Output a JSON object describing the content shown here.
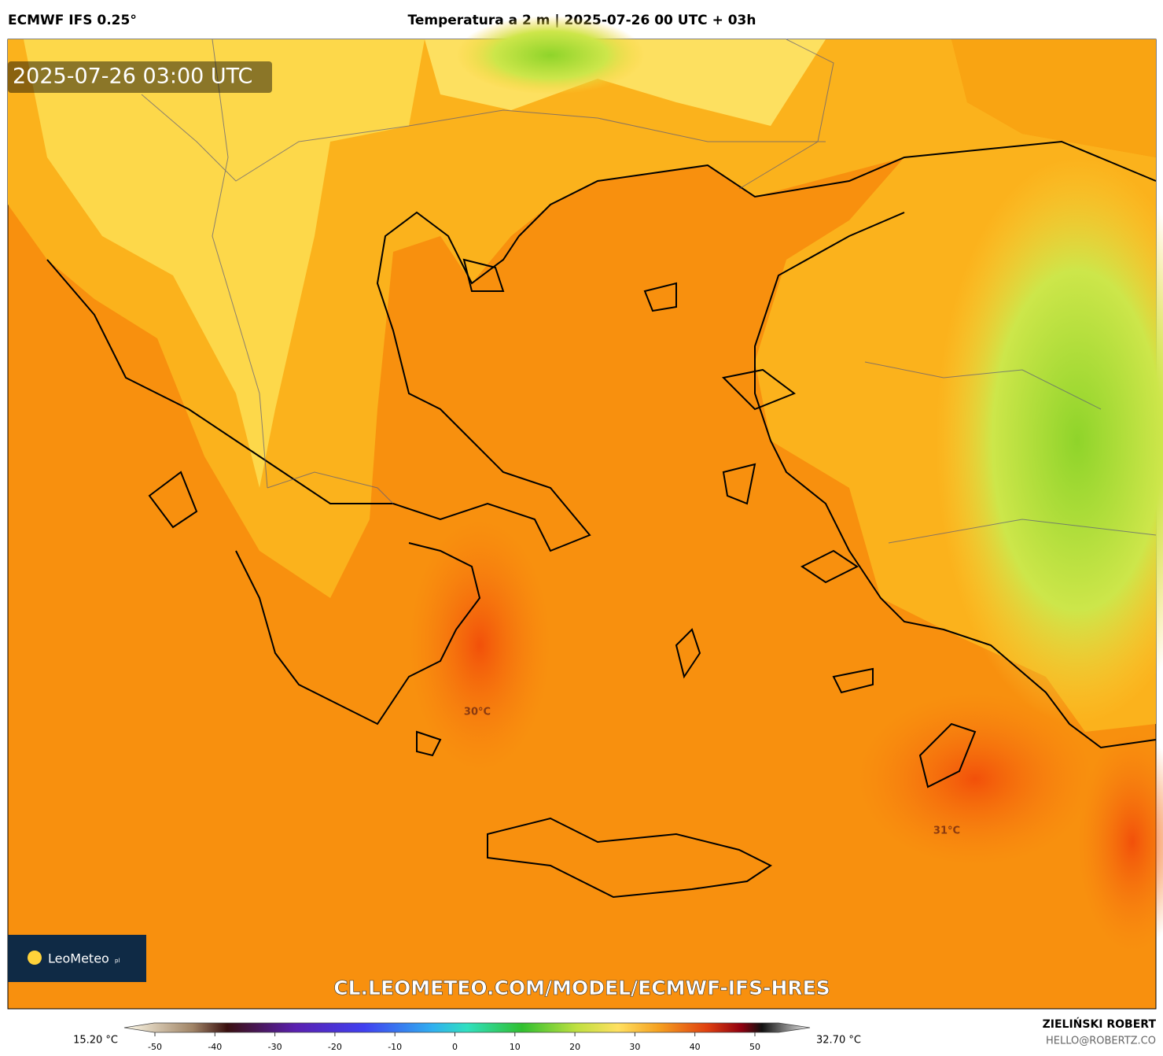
{
  "header": {
    "model": "ECMWF IFS 0.25°",
    "title": "Temperatura a 2 m | 2025-07-26 00 UTC + 03h"
  },
  "map": {
    "timestamp": "2025-07-26 03:00 UTC",
    "contour_labels": [
      "30°C",
      "31°C"
    ],
    "watermark": "CL.LEOMETEO.COM/MODEL/ECMWF-IFS-HRES",
    "logo": "LeoMeteo",
    "logo_suffix": "pl"
  },
  "colorbar": {
    "min_label": "15.20 °C",
    "max_label": "32.70 °C",
    "ticks": [
      -50,
      -40,
      -30,
      -20,
      -10,
      0,
      10,
      20,
      30,
      40,
      50
    ]
  },
  "footer": {
    "author": "ZIELIŃSKI ROBERT",
    "contact": "HELLO@ROBERTZ.CO"
  }
}
